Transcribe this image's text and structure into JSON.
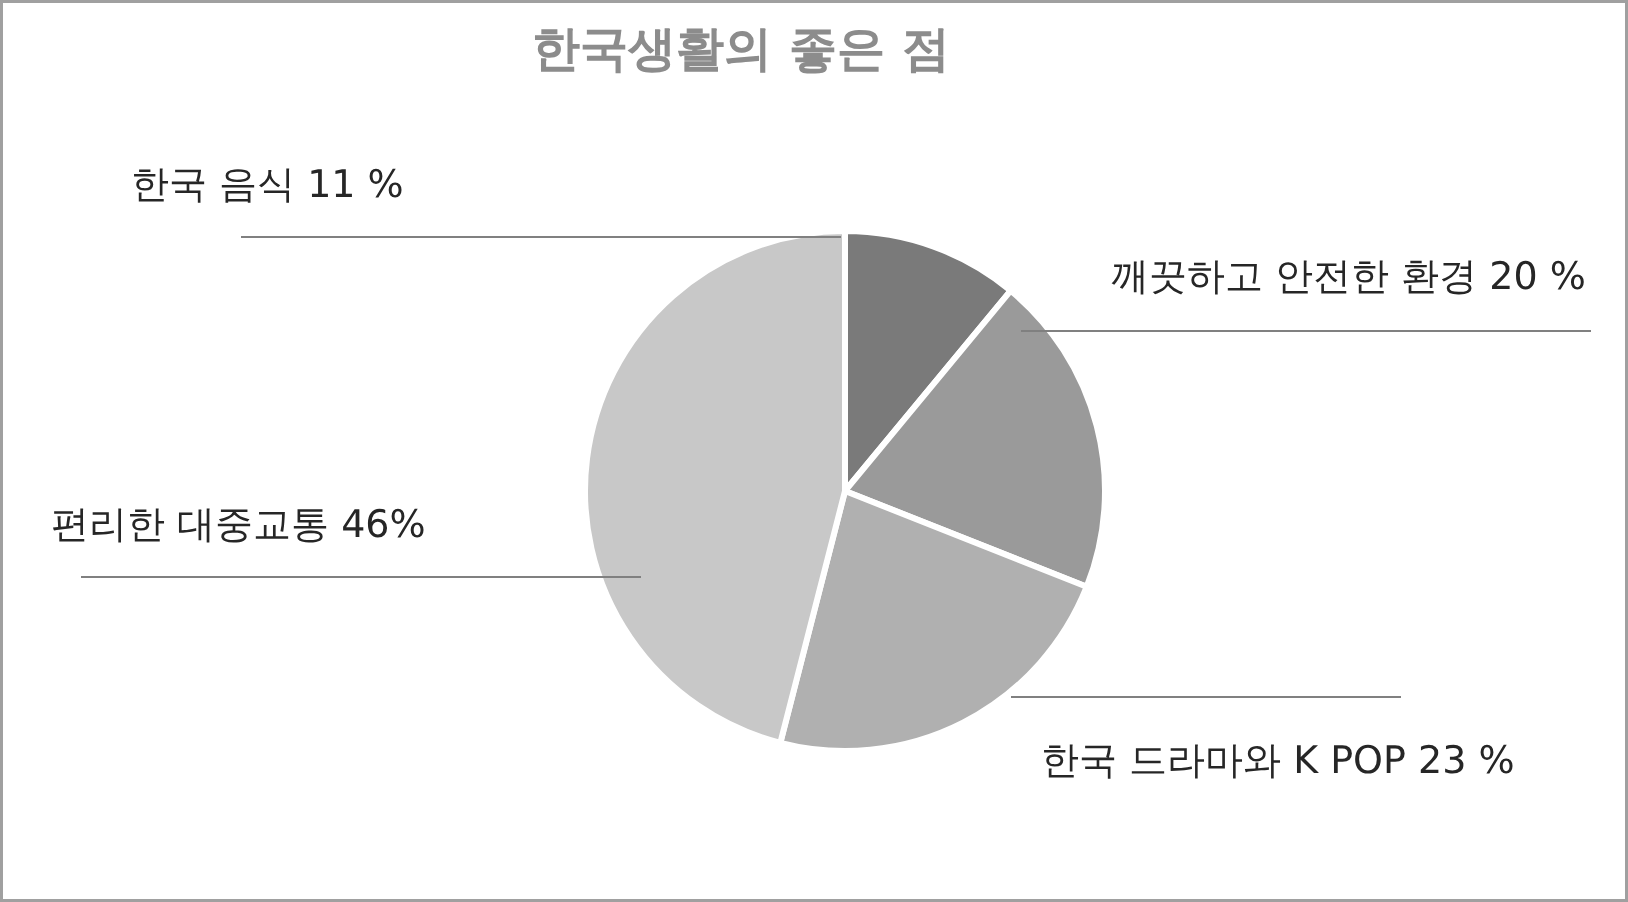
{
  "chart_data": {
    "type": "pie",
    "title": "한국생활의 좋은 점",
    "categories": [
      "한국 음식",
      "깨끗하고 안전한 환경",
      "한국 드라마와 K POP",
      "편리한 대중교통"
    ],
    "values": [
      11,
      20,
      23,
      46
    ],
    "colors": [
      "#7a7a7a",
      "#9a9a9a",
      "#b0b0b0",
      "#c8c8c8"
    ],
    "value_labels": [
      "11 %",
      "20 %",
      "23 %",
      "46%"
    ]
  }
}
